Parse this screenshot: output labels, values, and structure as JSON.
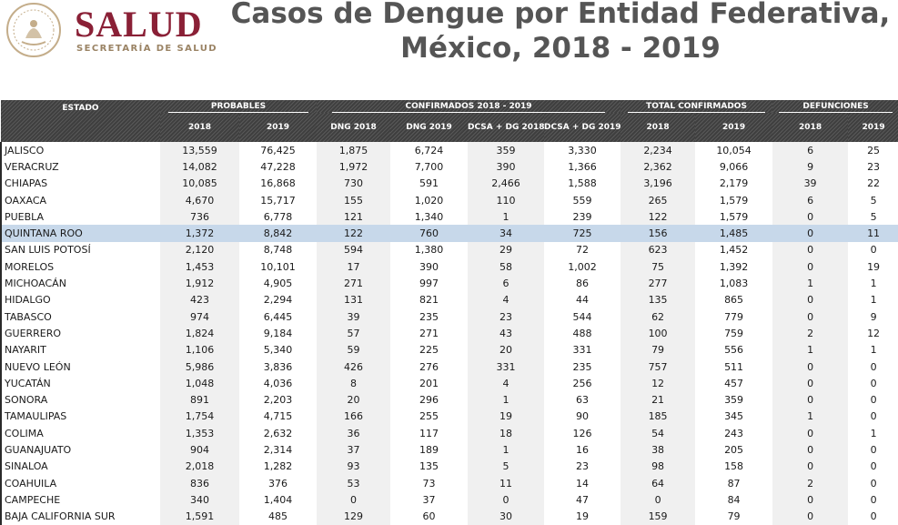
{
  "logo": {
    "word": "SALUD",
    "subtitle": "SECRETARÍA DE SALUD",
    "brand_color": "#8a2036",
    "seal_color": "#c4ad8a"
  },
  "title": {
    "line1": "Casos de Dengue por Entidad Federativa,",
    "line2": "México, 2018 - 2019"
  },
  "table": {
    "estado_header": "ESTADO",
    "groups": {
      "probables": "PROBABLES",
      "confirmados": "CONFIRMADOS 2018 - 2019",
      "total": "TOTAL CONFIRMADOS",
      "defunciones": "DEFUNCIONES"
    },
    "subheaders": [
      "2018",
      "2019",
      "DNG 2018",
      "DNG 2019",
      "DCSA + DG 2018",
      "DCSA + DG 2019",
      "2018",
      "2019",
      "2018",
      "2019"
    ],
    "highlight_color": "#c7d8ea",
    "rows": [
      [
        "JALISCO",
        "13,559",
        "76,425",
        "1,875",
        "6,724",
        "359",
        "3,330",
        "2,234",
        "10,054",
        "6",
        "25"
      ],
      [
        "VERACRUZ",
        "14,082",
        "47,228",
        "1,972",
        "7,700",
        "390",
        "1,366",
        "2,362",
        "9,066",
        "9",
        "23"
      ],
      [
        "CHIAPAS",
        "10,085",
        "16,868",
        "730",
        "591",
        "2,466",
        "1,588",
        "3,196",
        "2,179",
        "39",
        "22"
      ],
      [
        "OAXACA",
        "4,670",
        "15,717",
        "155",
        "1,020",
        "110",
        "559",
        "265",
        "1,579",
        "6",
        "5"
      ],
      [
        "PUEBLA",
        "736",
        "6,778",
        "121",
        "1,340",
        "1",
        "239",
        "122",
        "1,579",
        "0",
        "5"
      ],
      [
        "QUINTANA ROO",
        "1,372",
        "8,842",
        "122",
        "760",
        "34",
        "725",
        "156",
        "1,485",
        "0",
        "11"
      ],
      [
        "SAN LUIS POTOSÍ",
        "2,120",
        "8,748",
        "594",
        "1,380",
        "29",
        "72",
        "623",
        "1,452",
        "0",
        "0"
      ],
      [
        "MORELOS",
        "1,453",
        "10,101",
        "17",
        "390",
        "58",
        "1,002",
        "75",
        "1,392",
        "0",
        "19"
      ],
      [
        "MICHOACÁN",
        "1,912",
        "4,905",
        "271",
        "997",
        "6",
        "86",
        "277",
        "1,083",
        "1",
        "1"
      ],
      [
        "HIDALGO",
        "423",
        "2,294",
        "131",
        "821",
        "4",
        "44",
        "135",
        "865",
        "0",
        "1"
      ],
      [
        "TABASCO",
        "974",
        "6,445",
        "39",
        "235",
        "23",
        "544",
        "62",
        "779",
        "0",
        "9"
      ],
      [
        "GUERRERO",
        "1,824",
        "9,184",
        "57",
        "271",
        "43",
        "488",
        "100",
        "759",
        "2",
        "12"
      ],
      [
        "NAYARIT",
        "1,106",
        "5,340",
        "59",
        "225",
        "20",
        "331",
        "79",
        "556",
        "1",
        "1"
      ],
      [
        "NUEVO LEÓN",
        "5,986",
        "3,836",
        "426",
        "276",
        "331",
        "235",
        "757",
        "511",
        "0",
        "0"
      ],
      [
        "YUCATÁN",
        "1,048",
        "4,036",
        "8",
        "201",
        "4",
        "256",
        "12",
        "457",
        "0",
        "0"
      ],
      [
        "SONORA",
        "891",
        "2,203",
        "20",
        "296",
        "1",
        "63",
        "21",
        "359",
        "0",
        "0"
      ],
      [
        "TAMAULIPAS",
        "1,754",
        "4,715",
        "166",
        "255",
        "19",
        "90",
        "185",
        "345",
        "1",
        "0"
      ],
      [
        "COLIMA",
        "1,353",
        "2,632",
        "36",
        "117",
        "18",
        "126",
        "54",
        "243",
        "0",
        "1"
      ],
      [
        "GUANAJUATO",
        "904",
        "2,314",
        "37",
        "189",
        "1",
        "16",
        "38",
        "205",
        "0",
        "0"
      ],
      [
        "SINALOA",
        "2,018",
        "1,282",
        "93",
        "135",
        "5",
        "23",
        "98",
        "158",
        "0",
        "0"
      ],
      [
        "COAHUILA",
        "836",
        "376",
        "53",
        "73",
        "11",
        "14",
        "64",
        "87",
        "2",
        "0"
      ],
      [
        "CAMPECHE",
        "340",
        "1,404",
        "0",
        "37",
        "0",
        "47",
        "0",
        "84",
        "0",
        "0"
      ],
      [
        "BAJA CALIFORNIA SUR",
        "1,591",
        "485",
        "129",
        "60",
        "30",
        "19",
        "159",
        "79",
        "0",
        "0"
      ]
    ]
  }
}
